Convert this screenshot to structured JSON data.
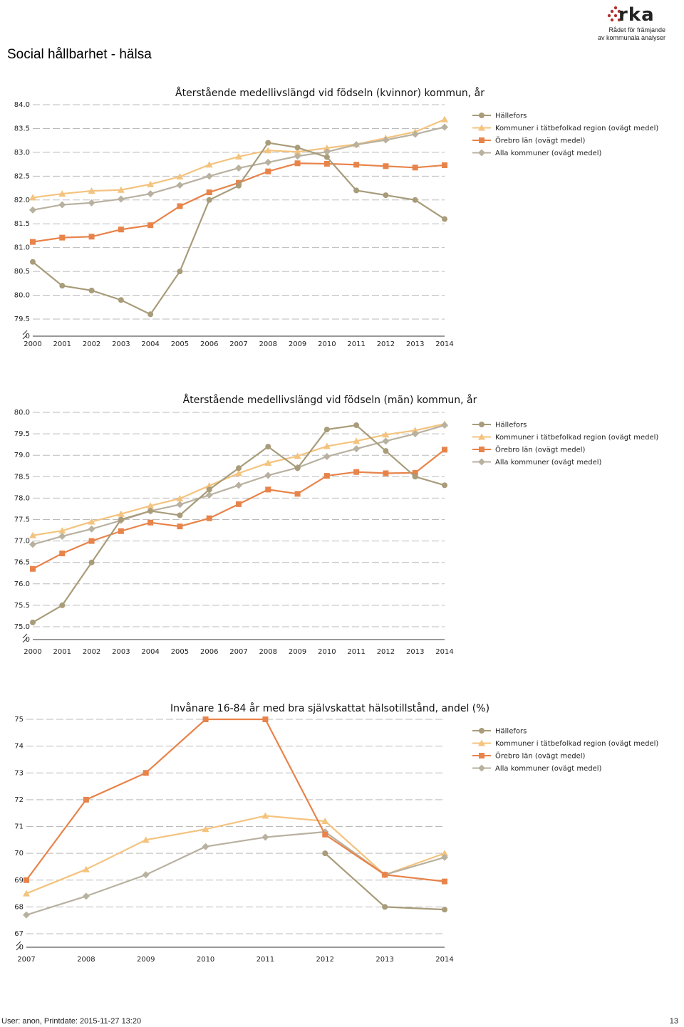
{
  "page": {
    "title": "Social hållbarhet - hälsa",
    "footer_user": "User: anon, Printdate: 2015-11-27 13:20",
    "page_number": "13"
  },
  "logo": {
    "text": "rka",
    "line1": "Rådet för främjande",
    "line2": "av kommunala analyser"
  },
  "colors": {
    "hallefors": "#A89C7A",
    "kommuner": "#F4C37E",
    "orebro": "#E8834A",
    "alla": "#B8B1A0",
    "grid": "#BBBBBB"
  },
  "chart_data": [
    {
      "type": "line",
      "title": "Återstående medellivslängd vid födseln (kvinnor) kommun, år",
      "categories": [
        "2000",
        "2001",
        "2002",
        "2003",
        "2004",
        "2005",
        "2006",
        "2007",
        "2008",
        "2009",
        "2010",
        "2011",
        "2012",
        "2013",
        "2014"
      ],
      "ylim": [
        79.5,
        84.0
      ],
      "yticks": [
        "84.0",
        "83.5",
        "83.0",
        "82.5",
        "82.0",
        "81.5",
        "81.0",
        "80.5",
        "80.0",
        "79.5"
      ],
      "zero_label": "0",
      "series": [
        {
          "name": "Hällefors",
          "key": "hallefors",
          "marker": "circle",
          "values": [
            80.7,
            80.2,
            80.1,
            79.9,
            79.6,
            80.5,
            82.0,
            82.3,
            83.2,
            83.1,
            82.9,
            82.2,
            82.1,
            82.0,
            81.6
          ]
        },
        {
          "name": "Kommuner i tätbefolkad region (ovägt medel)",
          "key": "kommuner",
          "marker": "triangle",
          "values": [
            82.05,
            82.13,
            82.19,
            82.21,
            82.33,
            82.49,
            82.74,
            82.91,
            83.04,
            83.01,
            83.09,
            83.17,
            83.3,
            83.43,
            83.69
          ]
        },
        {
          "name": "Örebro län (ovägt medel)",
          "key": "orebro",
          "marker": "square",
          "values": [
            81.12,
            81.21,
            81.23,
            81.38,
            81.47,
            81.87,
            82.16,
            82.36,
            82.6,
            82.77,
            82.76,
            82.74,
            82.71,
            82.68,
            82.73
          ]
        },
        {
          "name": "Alla kommuner (ovägt medel)",
          "key": "alla",
          "marker": "diamond",
          "values": [
            81.79,
            81.9,
            81.94,
            82.02,
            82.13,
            82.31,
            82.5,
            82.67,
            82.79,
            82.92,
            83.01,
            83.16,
            83.26,
            83.38,
            83.53
          ]
        }
      ]
    },
    {
      "type": "line",
      "title": "Återstående medellivslängd vid födseln (män) kommun, år",
      "categories": [
        "2000",
        "2001",
        "2002",
        "2003",
        "2004",
        "2005",
        "2006",
        "2007",
        "2008",
        "2009",
        "2010",
        "2011",
        "2012",
        "2013",
        "2014"
      ],
      "ylim": [
        75.0,
        80.0
      ],
      "yticks": [
        "80.0",
        "79.5",
        "79.0",
        "78.5",
        "78.0",
        "77.5",
        "77.0",
        "76.5",
        "76.0",
        "75.5",
        "75.0"
      ],
      "zero_label": "0",
      "series": [
        {
          "name": "Hällefors",
          "key": "hallefors",
          "marker": "circle",
          "values": [
            75.1,
            75.5,
            76.5,
            77.5,
            77.7,
            77.6,
            78.2,
            78.7,
            79.2,
            78.7,
            79.6,
            79.7,
            79.1,
            78.5,
            78.3
          ]
        },
        {
          "name": "Kommuner i tätbefolkad region (ovägt medel)",
          "key": "kommuner",
          "marker": "triangle",
          "values": [
            77.13,
            77.24,
            77.45,
            77.63,
            77.82,
            77.99,
            78.29,
            78.58,
            78.82,
            78.98,
            79.21,
            79.33,
            79.48,
            79.58,
            79.73
          ]
        },
        {
          "name": "Örebro län (ovägt medel)",
          "key": "orebro",
          "marker": "square",
          "values": [
            76.35,
            76.71,
            77.0,
            77.23,
            77.43,
            77.34,
            77.53,
            77.86,
            78.2,
            78.1,
            78.52,
            78.61,
            78.58,
            78.59,
            79.13
          ]
        },
        {
          "name": "Alla kommuner (ovägt medel)",
          "key": "alla",
          "marker": "diamond",
          "values": [
            76.92,
            77.11,
            77.28,
            77.48,
            77.7,
            77.85,
            78.07,
            78.3,
            78.53,
            78.71,
            78.97,
            79.15,
            79.33,
            79.5,
            79.7
          ]
        }
      ]
    },
    {
      "type": "line",
      "title": "Invånare 16-84 år med bra självskattat hälsotillstånd, andel (%)",
      "categories": [
        "2007",
        "2008",
        "2009",
        "2010",
        "2011",
        "2012",
        "2013",
        "2014"
      ],
      "ylim": [
        67,
        75
      ],
      "yticks": [
        "75",
        "74",
        "73",
        "72",
        "71",
        "70",
        "69",
        "68",
        "67"
      ],
      "zero_label": "0",
      "series": [
        {
          "name": "Hällefors",
          "key": "hallefors",
          "marker": "circle",
          "values": [
            null,
            null,
            null,
            null,
            null,
            70.0,
            68.0,
            67.9
          ]
        },
        {
          "name": "Kommuner i tätbefolkad region (ovägt medel)",
          "key": "kommuner",
          "marker": "triangle",
          "values": [
            68.5,
            69.4,
            70.5,
            70.9,
            71.4,
            71.2,
            69.2,
            70.0
          ]
        },
        {
          "name": "Örebro län (ovägt medel)",
          "key": "orebro",
          "marker": "square",
          "values": [
            69.0,
            72.0,
            73.0,
            75.0,
            75.0,
            70.7,
            69.2,
            68.95
          ]
        },
        {
          "name": "Alla kommuner (ovägt medel)",
          "key": "alla",
          "marker": "diamond",
          "values": [
            67.7,
            68.4,
            69.2,
            70.25,
            70.6,
            70.8,
            69.2,
            69.85
          ]
        }
      ]
    }
  ]
}
